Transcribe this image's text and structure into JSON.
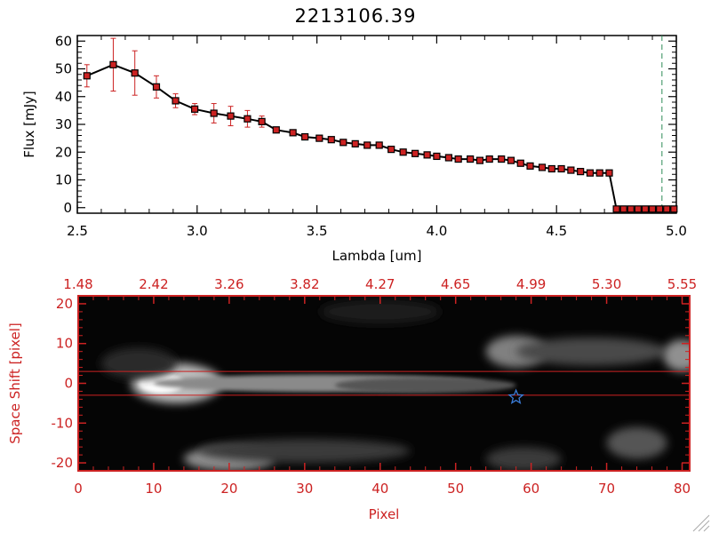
{
  "chart_data": [
    {
      "type": "line",
      "title": "2213106.39",
      "xlabel": "Lambda [um]",
      "ylabel": "Flux [mJy]",
      "xlim": [
        2.5,
        5.0
      ],
      "ylim": [
        -2,
        62
      ],
      "xticks": [
        "2.5",
        "3.0",
        "3.5",
        "4.0",
        "4.5",
        "5.0"
      ],
      "yticks": [
        "0",
        "10",
        "20",
        "30",
        "40",
        "50",
        "60"
      ],
      "grid": false,
      "legend": "none",
      "colors": {
        "line": "#000000",
        "marker": "#cc2222",
        "errorbar": "#cc2222",
        "cutoff": "#2e8b57"
      },
      "cutoff_x": 4.94,
      "series": [
        {
          "x": [
            2.54,
            2.65,
            2.74,
            2.83,
            2.91,
            2.99,
            3.07,
            3.14,
            3.21,
            3.27,
            3.33,
            3.4,
            3.45,
            3.51,
            3.56,
            3.61,
            3.66,
            3.71,
            3.76,
            3.81,
            3.86,
            3.91,
            3.96,
            4.0,
            4.05,
            4.09,
            4.14,
            4.18,
            4.22,
            4.27,
            4.31,
            4.35,
            4.39,
            4.44,
            4.48,
            4.52,
            4.56,
            4.6,
            4.64,
            4.68,
            4.72,
            4.75,
            4.78,
            4.81,
            4.84,
            4.87,
            4.9,
            4.93,
            4.96,
            4.99
          ],
          "y": [
            47.5,
            51.5,
            48.5,
            43.5,
            38.5,
            35.5,
            34,
            33,
            32,
            31,
            28,
            27,
            25.5,
            25,
            24.5,
            23.5,
            23,
            22.5,
            22.5,
            21,
            20,
            19.5,
            19,
            18.5,
            18,
            17.5,
            17.5,
            17,
            17.5,
            17.5,
            17,
            16,
            15,
            14.5,
            14,
            14,
            13.5,
            13,
            12.5,
            12.5,
            12.5,
            -0.5,
            -0.5,
            -0.5,
            -0.5,
            -0.5,
            -0.5,
            -0.5,
            -0.5,
            -0.5
          ],
          "err": [
            4,
            9.5,
            8,
            4,
            2.5,
            2,
            3.5,
            3.5,
            3,
            2,
            1,
            0.8,
            0.6,
            0.5,
            0.5,
            0.5,
            0.4,
            0.4,
            0.4,
            0.4,
            0.4,
            0.4,
            0.4,
            0.4,
            0.4,
            0.4,
            0.4,
            0.4,
            0.4,
            0.4,
            0.4,
            0.4,
            0.4,
            0.4,
            0.4,
            0.4,
            0.4,
            0.4,
            0.4,
            0.4,
            0.4,
            0,
            0,
            0,
            0,
            0,
            0,
            0,
            0,
            0
          ]
        }
      ]
    },
    {
      "type": "heatmap",
      "xlabel": "Pixel",
      "ylabel": "Space Shift [pixel]",
      "xlim": [
        0,
        81
      ],
      "ylim": [
        -22,
        22
      ],
      "xticks": [
        "0",
        "10",
        "20",
        "30",
        "40",
        "50",
        "60",
        "70",
        "80"
      ],
      "yticks": [
        "-20",
        "-10",
        "0",
        "10",
        "20"
      ],
      "top_axis_ticks": [
        "1.48",
        "2.42",
        "3.26",
        "3.82",
        "4.27",
        "4.65",
        "4.99",
        "5.30",
        "5.55"
      ],
      "colormap": "gray",
      "axis_color": "#cc2222",
      "aperture_lines": [
        3,
        -3
      ],
      "star_marker": {
        "x": 58,
        "y": -3.5,
        "color": "#3a7bd5"
      }
    }
  ]
}
